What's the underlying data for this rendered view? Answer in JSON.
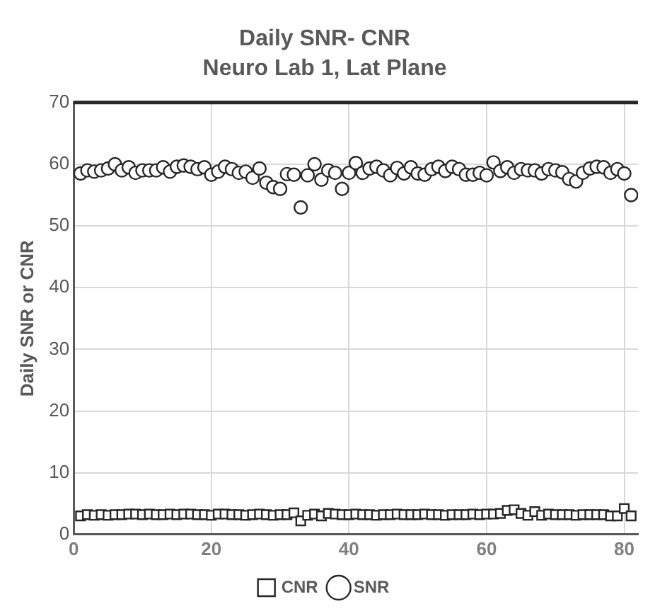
{
  "chart_data": {
    "type": "scatter",
    "title": "Daily SNR- CNR",
    "subtitle": "Neuro Lab 1, Lat Plane",
    "ylabel": "Daily SNR or CNR",
    "x": [
      1,
      2,
      3,
      4,
      5,
      6,
      7,
      8,
      9,
      10,
      11,
      12,
      13,
      14,
      15,
      16,
      17,
      18,
      19,
      20,
      21,
      22,
      23,
      24,
      25,
      26,
      27,
      28,
      29,
      30,
      31,
      32,
      33,
      34,
      35,
      36,
      37,
      38,
      39,
      40,
      41,
      42,
      43,
      44,
      45,
      46,
      47,
      48,
      49,
      50,
      51,
      52,
      53,
      54,
      55,
      56,
      57,
      58,
      59,
      60,
      61,
      62,
      63,
      64,
      65,
      66,
      67,
      68,
      69,
      70,
      71,
      72,
      73,
      74,
      75,
      76,
      77,
      78,
      79,
      80,
      81
    ],
    "series": [
      {
        "name": "CNR",
        "color": "#262626",
        "marker": "square",
        "values": [
          3,
          3.2,
          3.1,
          3.2,
          3.1,
          3.2,
          3.2,
          3.3,
          3.3,
          3.2,
          3.3,
          3.2,
          3.2,
          3.3,
          3.2,
          3.3,
          3.3,
          3.2,
          3.2,
          3.1,
          3.3,
          3.3,
          3.2,
          3.2,
          3.1,
          3.2,
          3.3,
          3.2,
          3.1,
          3.2,
          3.2,
          3.5,
          2.2,
          3.1,
          3.3,
          3,
          3.4,
          3.3,
          3.2,
          3.2,
          3.3,
          3.2,
          3.2,
          3.1,
          3.2,
          3.2,
          3.3,
          3.2,
          3.2,
          3.2,
          3.3,
          3.2,
          3.2,
          3.1,
          3.2,
          3.2,
          3.2,
          3.3,
          3.2,
          3.3,
          3.3,
          3.4,
          3.9,
          4,
          3.4,
          3.1,
          3.7,
          3.1,
          3.3,
          3.2,
          3.2,
          3.2,
          3.1,
          3.2,
          3.2,
          3.2,
          3.2,
          3,
          3,
          4.2,
          3
        ]
      },
      {
        "name": "SNR",
        "color": "#262626",
        "marker": "circle",
        "values": [
          58.5,
          59,
          58.8,
          59,
          59.3,
          60,
          59,
          59.5,
          58.6,
          59,
          59,
          59,
          59.5,
          58.8,
          59.6,
          59.8,
          59.6,
          59.2,
          59.5,
          58.3,
          58.8,
          59.6,
          59.2,
          58.6,
          58.8,
          57.8,
          59.3,
          57,
          56.3,
          56,
          58.4,
          58.3,
          53,
          58.2,
          60,
          57.5,
          59,
          58.6,
          56,
          58.6,
          60.2,
          58.6,
          59.3,
          59.6,
          59,
          58.2,
          59.4,
          58.5,
          59.5,
          58.5,
          58.3,
          59.2,
          59.6,
          58.9,
          59.6,
          59.2,
          58.3,
          58.3,
          58.6,
          58.2,
          60.3,
          58.9,
          59.5,
          58.6,
          59.2,
          59,
          59,
          58.5,
          59.2,
          59,
          58.7,
          57.6,
          57.2,
          58.6,
          59.3,
          59.6,
          59.5,
          58.6,
          59.2,
          58.5,
          55
        ]
      }
    ],
    "xlim": [
      0,
      82
    ],
    "xticks": [
      0,
      20,
      40,
      60,
      80
    ],
    "ylim": [
      0,
      70
    ],
    "yticks": [
      0,
      10,
      20,
      30,
      40,
      50,
      60,
      70
    ],
    "grid": true,
    "legend": "bottom"
  }
}
